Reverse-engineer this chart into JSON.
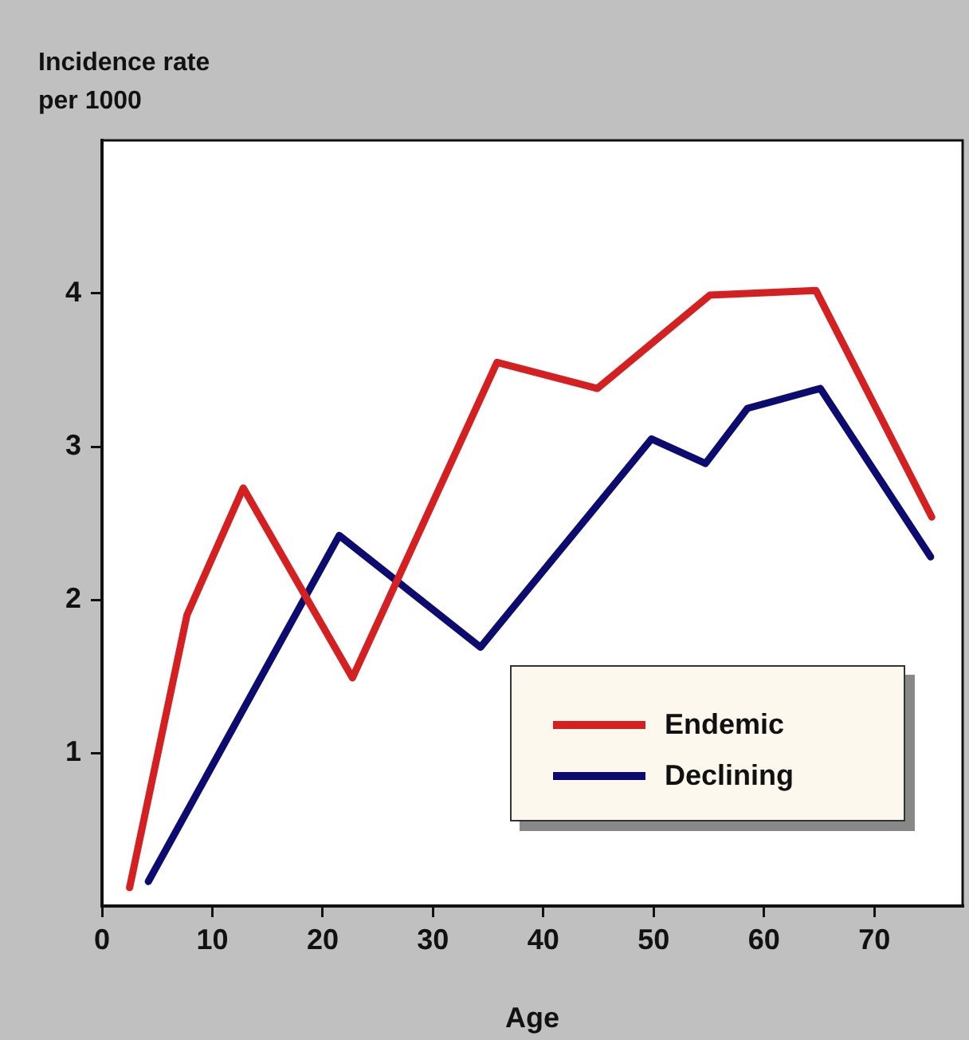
{
  "chart_data": {
    "type": "line",
    "xlabel": "Age",
    "ylabel": "Incidence rate\nper 1000",
    "xlim": [
      0,
      78
    ],
    "xticks": [
      0,
      10,
      20,
      30,
      40,
      50,
      60,
      70
    ],
    "ylim": [
      0,
      5
    ],
    "yticks": [
      1,
      2,
      3,
      4
    ],
    "series": [
      {
        "name": "Endemic",
        "color": "#d42020",
        "x": [
          2.5,
          7.7,
          12.8,
          22.7,
          35.8,
          44.9,
          55.1,
          64.7,
          75.2
        ],
        "values": [
          0.12,
          1.9,
          2.73,
          1.49,
          3.55,
          3.38,
          3.99,
          4.02,
          2.54
        ]
      },
      {
        "name": "Declining",
        "color": "#0c0c70",
        "x": [
          4.2,
          21.5,
          34.3,
          49.8,
          54.7,
          58.5,
          65.1,
          75.1
        ],
        "values": [
          0.16,
          2.42,
          1.69,
          3.05,
          2.89,
          3.25,
          3.38,
          2.28
        ]
      }
    ],
    "legend": "bottom right",
    "grid": false,
    "marker": "none",
    "line_style": "solid"
  }
}
